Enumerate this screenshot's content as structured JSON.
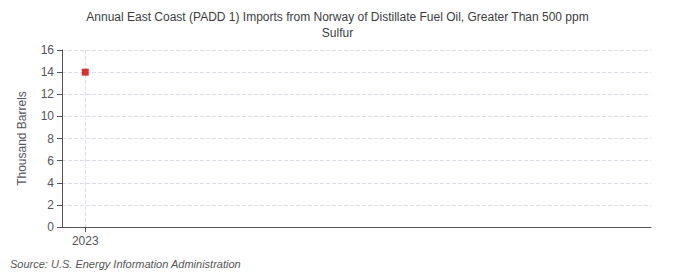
{
  "chart_data": {
    "type": "scatter",
    "title": "Annual East Coast (PADD 1) Imports from Norway of Distillate Fuel Oil, Greater Than 500 ppm\nSulfur",
    "ylabel": "Thousand Barrels",
    "annotation": "Source: U.S. Energy Information Administration",
    "x": [
      2023
    ],
    "values": [
      14
    ],
    "color": "#cc0000",
    "marker": "square",
    "xlim": [
      2022.7,
      2030.3
    ],
    "xticks": [
      2023
    ],
    "ylim": [
      0,
      16
    ],
    "yticks": [
      0,
      2,
      4,
      6,
      8,
      10,
      12,
      14,
      16
    ],
    "grid": true
  }
}
